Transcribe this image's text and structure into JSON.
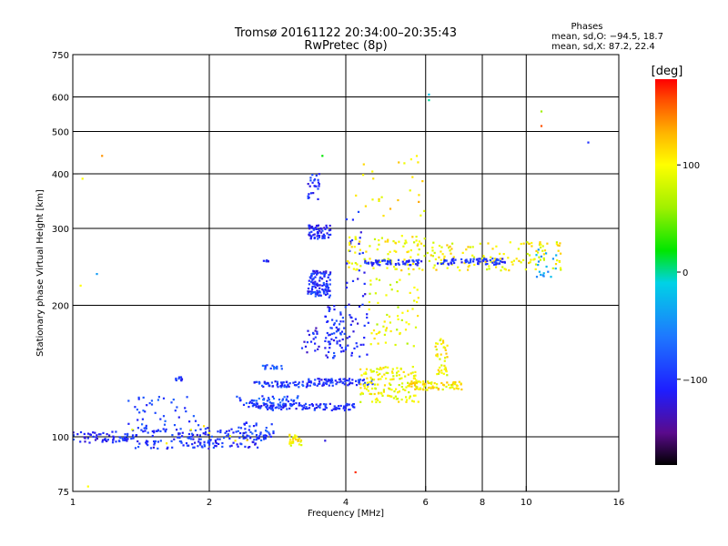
{
  "chart_data": {
    "type": "scatter",
    "title": "Tromsø 20161122 20:34:00–20:35:43",
    "subtitle": "RwPretec (8p)",
    "xlabel": "Frequency [MHz]",
    "ylabel": "Stationary phase Virtual Height [km]",
    "x_scale": "log",
    "y_scale": "log",
    "xlim": [
      1,
      16
    ],
    "ylim": [
      75,
      750
    ],
    "x_ticks": [
      {
        "value": 1,
        "label": "1"
      },
      {
        "value": 2,
        "label": "2"
      },
      {
        "value": 4,
        "label": "4"
      },
      {
        "value": 6,
        "label": "6"
      },
      {
        "value": 8,
        "label": "8"
      },
      {
        "value": 10,
        "label": "10"
      },
      {
        "value": 16,
        "label": "16"
      }
    ],
    "y_ticks": [
      {
        "value": 75,
        "label": "75"
      },
      {
        "value": 100,
        "label": "100"
      },
      {
        "value": 200,
        "label": "200"
      },
      {
        "value": 300,
        "label": "300"
      },
      {
        "value": 400,
        "label": "400"
      },
      {
        "value": 500,
        "label": "500"
      },
      {
        "value": 600,
        "label": "600"
      },
      {
        "value": 750,
        "label": "750"
      }
    ],
    "x_gridlines": [
      2,
      4,
      6,
      8,
      10
    ],
    "y_gridlines": [
      100,
      200,
      300,
      400,
      500,
      600
    ],
    "grid": true,
    "phases": {
      "heading": "Phases",
      "line_o": "mean, sd,O: −94.5, 18.7",
      "line_x": "mean, sd,X:  87.2, 22.4"
    },
    "colorbar": {
      "label": "[deg]",
      "range": [
        -180,
        180
      ],
      "ticks": [
        {
          "value": 100,
          "label": "100"
        },
        {
          "value": 0,
          "label": "0"
        },
        {
          "value": -100,
          "label": "−100"
        }
      ],
      "stops": [
        {
          "value": -180,
          "color": "#000000"
        },
        {
          "value": -150,
          "color": "#5a0a8c"
        },
        {
          "value": -110,
          "color": "#1e1eff"
        },
        {
          "value": -60,
          "color": "#1e78ff"
        },
        {
          "value": -10,
          "color": "#00d2e6"
        },
        {
          "value": 20,
          "color": "#00e600"
        },
        {
          "value": 60,
          "color": "#a0f000"
        },
        {
          "value": 100,
          "color": "#ffff00"
        },
        {
          "value": 130,
          "color": "#ffb400"
        },
        {
          "value": 160,
          "color": "#ff5000"
        },
        {
          "value": 180,
          "color": "#ff0000"
        }
      ]
    },
    "clusters": [
      {
        "phase": -105,
        "f": [
          1.0,
          1.35
        ],
        "h": [
          97,
          103
        ],
        "n": 60
      },
      {
        "phase": -100,
        "f": [
          1.35,
          2.6
        ],
        "h": [
          94,
          105
        ],
        "n": 170
      },
      {
        "phase": -90,
        "f": [
          1.3,
          1.9
        ],
        "h": [
          104,
          124
        ],
        "n": 40
      },
      {
        "phase": -100,
        "f": [
          1.68,
          1.75
        ],
        "h": [
          134,
          138
        ],
        "n": 10
      },
      {
        "phase": -90,
        "f": [
          2.3,
          2.8
        ],
        "h": [
          98,
          108
        ],
        "n": 40
      },
      {
        "phase": -85,
        "f": [
          2.3,
          3.2
        ],
        "h": [
          117,
          124
        ],
        "n": 70
      },
      {
        "phase": -100,
        "f": [
          2.5,
          4.2
        ],
        "h": [
          115,
          119
        ],
        "n": 110
      },
      {
        "phase": -95,
        "f": [
          2.5,
          3.3
        ],
        "h": [
          130,
          134
        ],
        "n": 60
      },
      {
        "phase": -80,
        "f": [
          2.6,
          2.9
        ],
        "h": [
          143,
          146
        ],
        "n": 15
      },
      {
        "phase": -100,
        "f": [
          3.3,
          4.6
        ],
        "h": [
          131,
          136
        ],
        "n": 80
      },
      {
        "phase": -100,
        "f": [
          3.3,
          3.7
        ],
        "h": [
          208,
          240
        ],
        "n": 110
      },
      {
        "phase": -105,
        "f": [
          3.3,
          3.7
        ],
        "h": [
          284,
          305
        ],
        "n": 60
      },
      {
        "phase": -100,
        "f": [
          3.3,
          3.5
        ],
        "h": [
          350,
          400
        ],
        "n": 25
      },
      {
        "phase": -100,
        "f": [
          3.6,
          4.0
        ],
        "h": [
          150,
          200
        ],
        "n": 70
      },
      {
        "phase": -110,
        "f": [
          3.2,
          3.5
        ],
        "h": [
          156,
          180
        ],
        "n": 20
      },
      {
        "phase": -100,
        "f": [
          2.6,
          2.7
        ],
        "h": [
          252,
          254
        ],
        "n": 6
      },
      {
        "phase": -110,
        "f": [
          4.0,
          4.5
        ],
        "h": [
          150,
          330
        ],
        "n": 50
      },
      {
        "phase": 95,
        "f": [
          4.3,
          5.8
        ],
        "h": [
          120,
          145
        ],
        "n": 140
      },
      {
        "phase": 105,
        "f": [
          5.5,
          7.2
        ],
        "h": [
          128,
          134
        ],
        "n": 80
      },
      {
        "phase": 100,
        "f": [
          6.3,
          6.7
        ],
        "h": [
          138,
          170
        ],
        "n": 40
      },
      {
        "phase": 100,
        "f": [
          4.0,
          6.0
        ],
        "h": [
          240,
          290
        ],
        "n": 90
      },
      {
        "phase": -100,
        "f": [
          4.4,
          5.9
        ],
        "h": [
          247,
          254
        ],
        "n": 60
      },
      {
        "phase": 100,
        "f": [
          6.0,
          12.0
        ],
        "h": [
          240,
          280
        ],
        "n": 130
      },
      {
        "phase": -100,
        "f": [
          6.2,
          9.0
        ],
        "h": [
          248,
          256
        ],
        "n": 70
      },
      {
        "phase": 90,
        "f": [
          4.5,
          5.8
        ],
        "h": [
          160,
          240
        ],
        "n": 60
      },
      {
        "phase": 110,
        "f": [
          4.2,
          6.0
        ],
        "h": [
          320,
          440
        ],
        "n": 25
      },
      {
        "phase": 100,
        "f": [
          3.0,
          3.2
        ],
        "h": [
          95,
          102
        ],
        "n": 25
      },
      {
        "phase": -40,
        "f": [
          10.5,
          11.7
        ],
        "h": [
          230,
          270
        ],
        "n": 18
      },
      {
        "phase": 100,
        "f": [
          1.0,
          2.6
        ],
        "h": [
          95,
          106
        ],
        "n": 8
      }
    ],
    "isolated_points": [
      {
        "x": 1.05,
        "y": 390,
        "phase": 100
      },
      {
        "x": 1.16,
        "y": 440,
        "phase": 140
      },
      {
        "x": 1.04,
        "y": 222,
        "phase": 100
      },
      {
        "x": 1.13,
        "y": 236,
        "phase": -40
      },
      {
        "x": 3.55,
        "y": 440,
        "phase": 20
      },
      {
        "x": 6.1,
        "y": 608,
        "phase": -20
      },
      {
        "x": 6.1,
        "y": 590,
        "phase": 0
      },
      {
        "x": 10.8,
        "y": 556,
        "phase": 60
      },
      {
        "x": 10.8,
        "y": 515,
        "phase": 160
      },
      {
        "x": 13.7,
        "y": 472,
        "phase": -100
      },
      {
        "x": 4.2,
        "y": 83,
        "phase": 170
      },
      {
        "x": 1.08,
        "y": 77,
        "phase": 100
      },
      {
        "x": 3.6,
        "y": 98,
        "phase": -120
      }
    ]
  }
}
